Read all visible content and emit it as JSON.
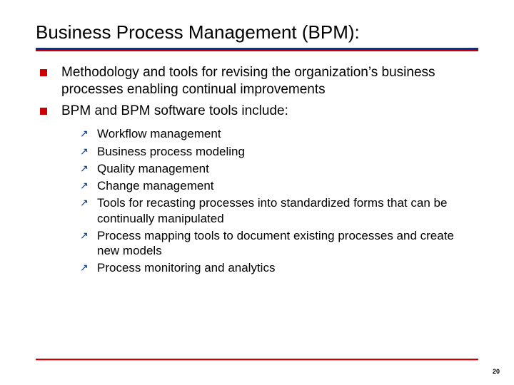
{
  "colors": {
    "primary_blue": "#003399",
    "primary_red": "#cc0000",
    "yellow": "#ffcc00",
    "text": "#000000",
    "background": "#ffffff"
  },
  "typography": {
    "title_fontsize": 26,
    "level1_fontsize": 19,
    "level2_fontsize": 17,
    "pagenum_fontsize": 9,
    "font_family": "Arial"
  },
  "title": "Business Process Management (BPM):",
  "level1": [
    "Methodology and tools for revising the organization’s business processes enabling continual improvements",
    "BPM and BPM software tools include:"
  ],
  "level2": [
    "Workflow management",
    "Business process modeling",
    "Quality management",
    "Change management",
    "Tools for recasting processes into standardized forms that can be continually manipulated",
    "Process mapping tools to document existing processes and create new models",
    "Process monitoring and analytics"
  ],
  "page_number": "20"
}
